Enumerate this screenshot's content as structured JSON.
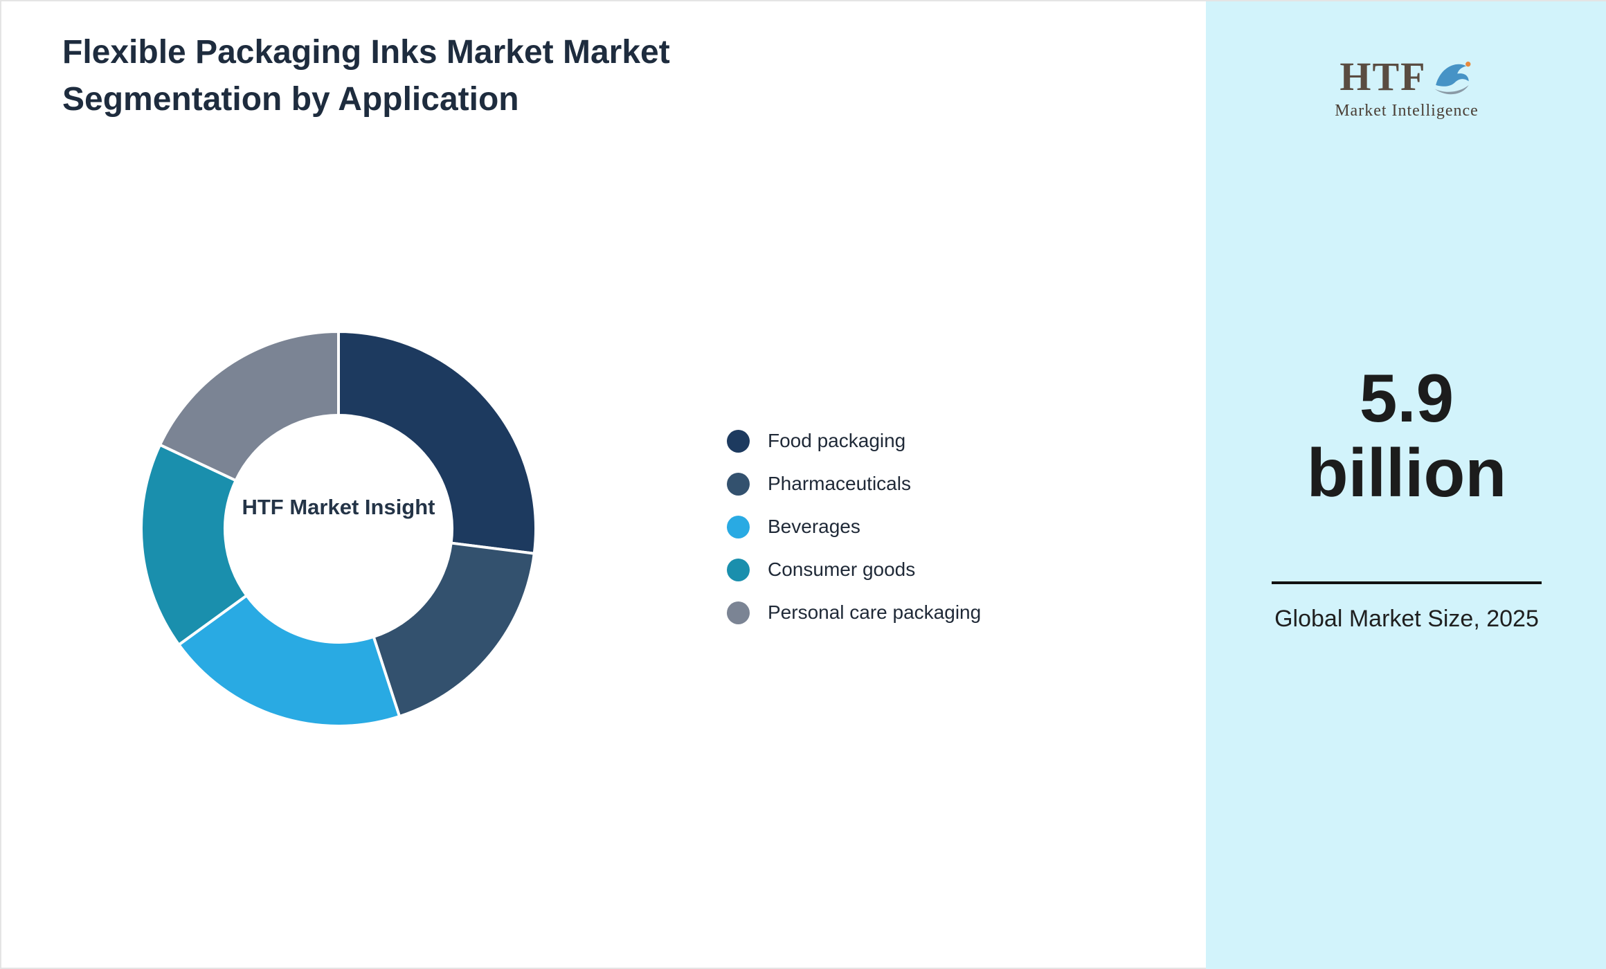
{
  "page": {
    "title": "Flexible Packaging Inks Market Market Segmentation by Application"
  },
  "chart_data": {
    "type": "pie",
    "subtype": "donut",
    "title": "Flexible Packaging Inks Market Market Segmentation by Application",
    "center_label": "HTF Market Insight",
    "categories": [
      "Food packaging",
      "Pharmaceuticals",
      "Beverages",
      "Consumer goods",
      "Personal care packaging"
    ],
    "values": [
      27,
      18,
      20,
      17,
      18
    ],
    "colors": [
      "#1d3a5f",
      "#33516e",
      "#29aae3",
      "#1a8fad",
      "#7b8494"
    ],
    "legend_position": "right",
    "slice_separator_color": "#ffffff"
  },
  "side_panel": {
    "background_color": "#d2f3fb",
    "logo": {
      "text": "HTF",
      "subtext": "Market Intelligence"
    },
    "market_size": {
      "value": "5.9",
      "unit": "billion",
      "caption": "Global Market Size, 2025"
    }
  }
}
